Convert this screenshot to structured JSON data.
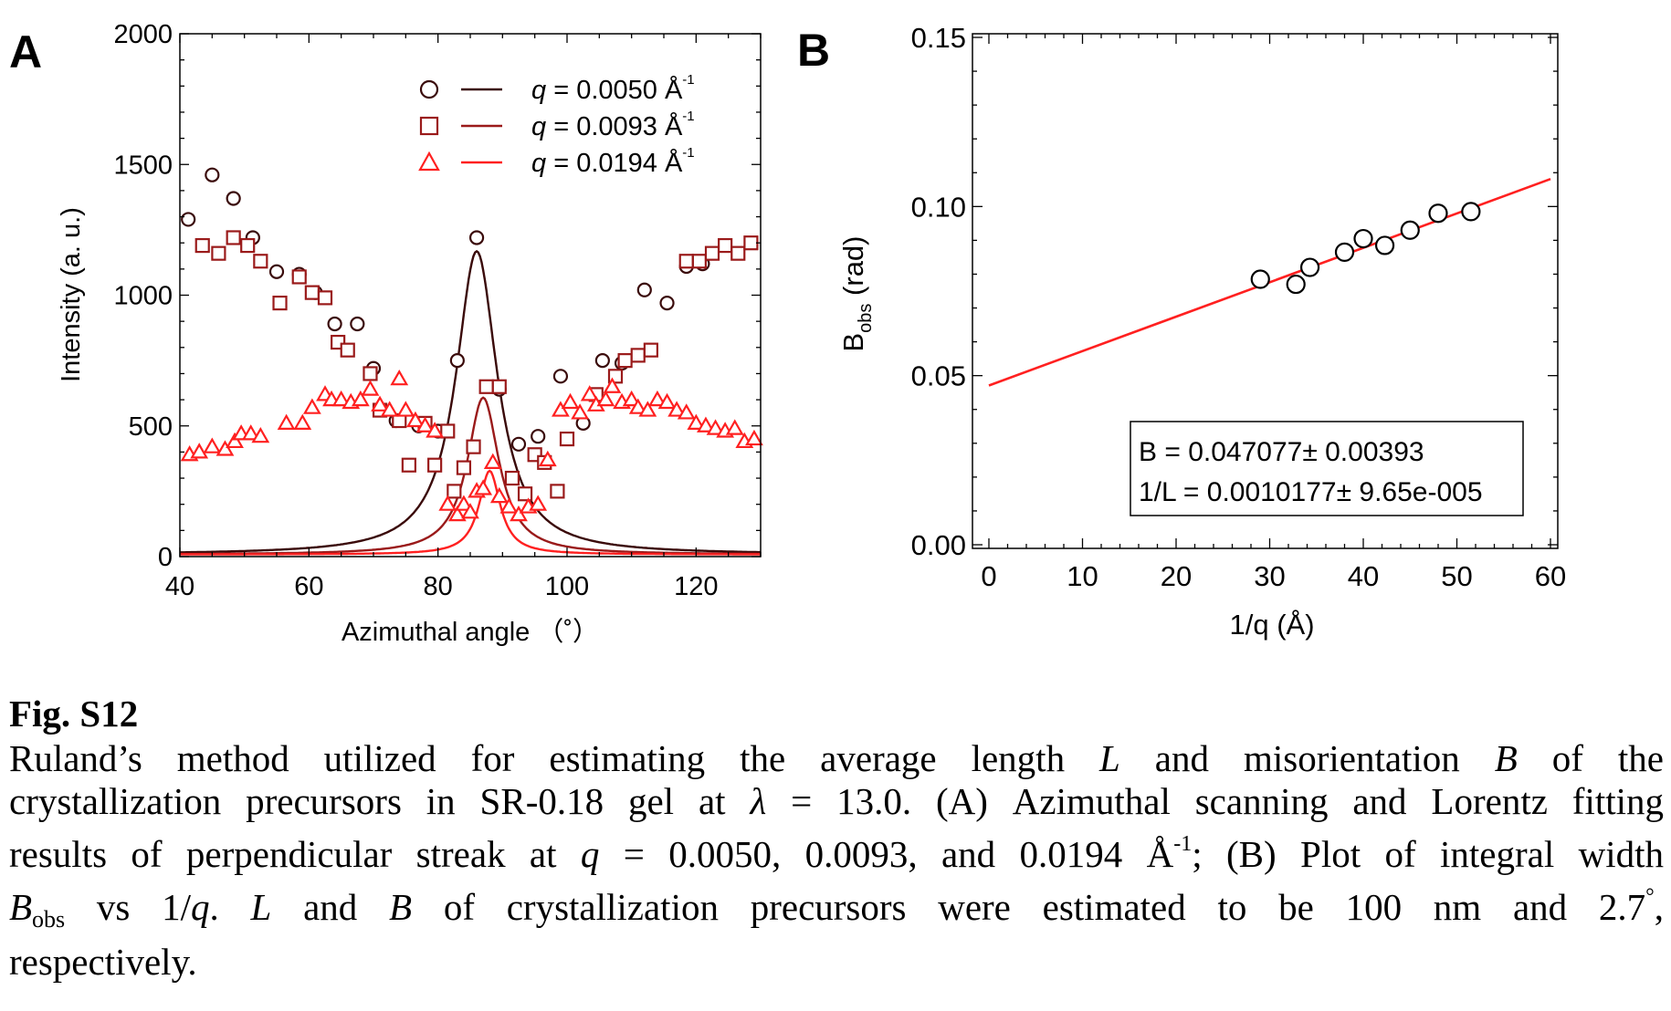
{
  "colors": {
    "s1": "#3a0a0a",
    "s2": "#9a1a1a",
    "s3": "#ff2020",
    "fitB": "#ff2020",
    "axis": "#000000"
  },
  "chart_data": [
    {
      "panel_label": "A",
      "type": "scatter",
      "xlabel": "Azimuthal angle （˚）",
      "ylabel": "Intensity (a. u.)",
      "xlim": [
        40,
        130
      ],
      "ylim": [
        0,
        2000
      ],
      "xticks": [
        "40",
        "60",
        "80",
        "100",
        "120"
      ],
      "yticks": [
        "0",
        "500",
        "1000",
        "1500",
        "2000"
      ],
      "legend_position": "top-right",
      "series": [
        {
          "name": "q = 0.0050 Å⁻¹",
          "legend": {
            "q_symbol": "q",
            "eq_value": " = 0.0050 ",
            "unit": "Å",
            "exp": "-1"
          },
          "marker": "circle",
          "color_key": "s1",
          "fit": {
            "type": "lorentz",
            "center": 86,
            "amplitude": 1160,
            "hwhm": 3.9,
            "baseline": 0
          },
          "points": [
            [
              41.3,
              1290
            ],
            [
              45.0,
              1460
            ],
            [
              48.3,
              1370
            ],
            [
              51.3,
              1220
            ],
            [
              55.0,
              1090
            ],
            [
              58.5,
              1080
            ],
            [
              61.0,
              1010
            ],
            [
              64.0,
              890
            ],
            [
              67.5,
              890
            ],
            [
              70.0,
              720
            ],
            [
              73.5,
              520
            ],
            [
              77.0,
              500
            ],
            [
              80.0,
              480
            ],
            [
              83.0,
              750
            ],
            [
              86.0,
              1220
            ],
            [
              89.5,
              640
            ],
            [
              92.5,
              430
            ],
            [
              95.5,
              460
            ],
            [
              99.0,
              690
            ],
            [
              102.5,
              510
            ],
            [
              105.5,
              750
            ],
            [
              108.5,
              740
            ],
            [
              112.0,
              1020
            ],
            [
              115.5,
              970
            ],
            [
              118.5,
              1110
            ],
            [
              121.0,
              1120
            ]
          ]
        },
        {
          "name": "q = 0.0093 Å⁻¹",
          "legend": {
            "q_symbol": "q",
            "eq_value": " = 0.0093 ",
            "unit": "Å",
            "exp": "-1"
          },
          "marker": "square",
          "color_key": "s2",
          "fit": {
            "type": "lorentz",
            "center": 87,
            "amplitude": 600,
            "hwhm": 3.0,
            "baseline": 0
          },
          "points": [
            [
              43.5,
              1190
            ],
            [
              46.0,
              1160
            ],
            [
              48.3,
              1220
            ],
            [
              50.5,
              1190
            ],
            [
              52.5,
              1130
            ],
            [
              55.5,
              970
            ],
            [
              58.5,
              1070
            ],
            [
              60.5,
              1010
            ],
            [
              62.5,
              990
            ],
            [
              64.5,
              820
            ],
            [
              66.0,
              790
            ],
            [
              69.5,
              700
            ],
            [
              71.0,
              560
            ],
            [
              74.0,
              520
            ],
            [
              75.5,
              350
            ],
            [
              78.0,
              510
            ],
            [
              79.5,
              350
            ],
            [
              81.5,
              480
            ],
            [
              82.5,
              250
            ],
            [
              84.0,
              340
            ],
            [
              85.5,
              420
            ],
            [
              87.5,
              650
            ],
            [
              89.5,
              650
            ],
            [
              91.5,
              300
            ],
            [
              93.5,
              240
            ],
            [
              95.0,
              390
            ],
            [
              96.5,
              360
            ],
            [
              98.5,
              250
            ],
            [
              100.0,
              450
            ],
            [
              104.5,
              620
            ],
            [
              107.5,
              690
            ],
            [
              109.0,
              750
            ],
            [
              111.0,
              770
            ],
            [
              113.0,
              790
            ],
            [
              118.5,
              1130
            ],
            [
              120.5,
              1130
            ],
            [
              122.5,
              1160
            ],
            [
              124.5,
              1190
            ],
            [
              126.5,
              1160
            ],
            [
              128.5,
              1200
            ]
          ]
        },
        {
          "name": "q = 0.0194 Å⁻¹",
          "legend": {
            "q_symbol": "q",
            "eq_value": " = 0.0194 ",
            "unit": "Å",
            "exp": "-1"
          },
          "marker": "triangle",
          "color_key": "s3",
          "fit": {
            "type": "lorentz",
            "center": 88,
            "amplitude": 320,
            "hwhm": 2.0,
            "baseline": 0
          },
          "points": [
            [
              41.5,
              390
            ],
            [
              43.0,
              400
            ],
            [
              45.0,
              420
            ],
            [
              47.0,
              410
            ],
            [
              48.5,
              440
            ],
            [
              49.5,
              470
            ],
            [
              51.0,
              470
            ],
            [
              52.5,
              460
            ],
            [
              56.5,
              510
            ],
            [
              59.0,
              510
            ],
            [
              60.5,
              570
            ],
            [
              62.5,
              620
            ],
            [
              63.5,
              600
            ],
            [
              65.0,
              600
            ],
            [
              66.5,
              590
            ],
            [
              68.0,
              600
            ],
            [
              69.5,
              640
            ],
            [
              71.0,
              580
            ],
            [
              72.5,
              560
            ],
            [
              74.0,
              680
            ],
            [
              75.0,
              560
            ],
            [
              76.5,
              520
            ],
            [
              78.0,
              500
            ],
            [
              79.5,
              480
            ],
            [
              81.5,
              200
            ],
            [
              83.0,
              160
            ],
            [
              84.0,
              200
            ],
            [
              85.0,
              170
            ],
            [
              86.0,
              250
            ],
            [
              87.0,
              260
            ],
            [
              88.5,
              360
            ],
            [
              89.5,
              230
            ],
            [
              91.0,
              190
            ],
            [
              92.5,
              160
            ],
            [
              94.0,
              190
            ],
            [
              95.5,
              200
            ],
            [
              97.0,
              370
            ],
            [
              99.0,
              560
            ],
            [
              100.5,
              590
            ],
            [
              102.0,
              550
            ],
            [
              103.5,
              620
            ],
            [
              104.5,
              580
            ],
            [
              106.0,
              600
            ],
            [
              107.0,
              650
            ],
            [
              108.5,
              590
            ],
            [
              110.0,
              600
            ],
            [
              111.0,
              570
            ],
            [
              112.5,
              560
            ],
            [
              114.0,
              600
            ],
            [
              115.5,
              590
            ],
            [
              117.0,
              560
            ],
            [
              118.5,
              550
            ],
            [
              120.0,
              510
            ],
            [
              121.5,
              500
            ],
            [
              123.0,
              490
            ],
            [
              124.5,
              480
            ],
            [
              126.0,
              490
            ],
            [
              127.5,
              440
            ],
            [
              129.0,
              450
            ]
          ]
        }
      ]
    },
    {
      "panel_label": "B",
      "type": "scatter",
      "ylabel_main": "B",
      "ylabel_sub": "obs",
      "ylabel_rest": " (rad)",
      "xlabel": "1/q (Å)",
      "xlim": [
        0,
        60
      ],
      "ylim": [
        0,
        0.15
      ],
      "xticks": [
        "0",
        "10",
        "20",
        "30",
        "40",
        "50",
        "60"
      ],
      "yticks": [
        "0.00",
        "0.05",
        "0.10",
        "0.15"
      ],
      "fit_line": {
        "intercept": 0.047077,
        "slope": 0.0010177,
        "color_key": "fitB"
      },
      "fit_box": {
        "line1": "B = 0.047077± 0.00393",
        "line2": "1/L = 0.0010177± 9.65e-005"
      },
      "points": [
        [
          29.0,
          0.0785
        ],
        [
          32.8,
          0.077
        ],
        [
          34.3,
          0.082
        ],
        [
          38.0,
          0.0865
        ],
        [
          40.0,
          0.0905
        ],
        [
          42.3,
          0.0885
        ],
        [
          45.0,
          0.093
        ],
        [
          48.0,
          0.098
        ],
        [
          51.5,
          0.0985
        ]
      ]
    }
  ],
  "caption": {
    "fig_label": "Fig. S12",
    "line1": {
      "a": "Ruland’s method utilized for estimating the average length ",
      "L": "L",
      "b": " and misorientation ",
      "B": "B",
      "c": " of the"
    },
    "line2": {
      "a": "crystallization precursors in SR-0.18 gel at ",
      "lambda": "λ",
      "b": " = 13.0. (A) Azimuthal scanning and Lorentz fitting"
    },
    "line3": {
      "a": "results of perpendicular streak at ",
      "q": "q",
      "b": " = 0.0050, 0.0093, and 0.0194 Å",
      "sup": "-1",
      "c": "; (B) Plot of integral width"
    },
    "line4": {
      "B": "B",
      "sub": "obs",
      "a": " vs 1/",
      "q": "q",
      "b": ". ",
      "L": "L",
      "c": " and ",
      "B2": "B",
      "d": " of crystallization precursors were estimated to be 100 nm and 2.7",
      "deg": "°",
      "e": ","
    },
    "line5": "respectively."
  }
}
